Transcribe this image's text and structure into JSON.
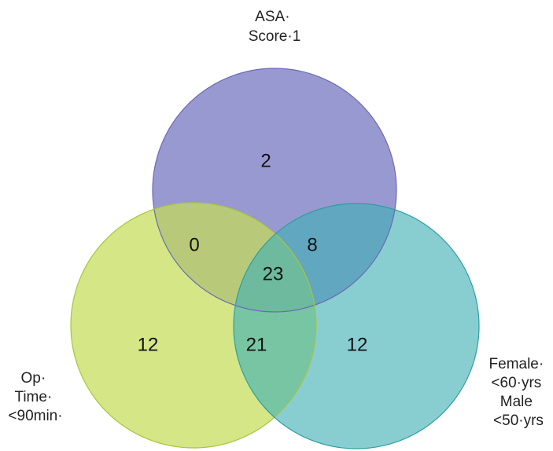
{
  "diagram": {
    "type": "venn",
    "sets": [
      {
        "id": "asa",
        "label_lines": [
          "ASA·",
          "Score·1"
        ],
        "color": "#7c7cc4"
      },
      {
        "id": "optime",
        "label_lines": [
          "Op·",
          "Time·",
          "<90min·"
        ],
        "color": "#c6df5e"
      },
      {
        "id": "age",
        "label_lines": [
          "Female·",
          "<60·yrs",
          "Male",
          "<50·yrs"
        ],
        "color": "#56b9bd"
      }
    ],
    "regions": {
      "asa_only": "2",
      "optime_only": "12",
      "age_only": "12",
      "asa_optime": "0",
      "asa_age": "8",
      "optime_age": "21",
      "all_three": "23"
    }
  }
}
